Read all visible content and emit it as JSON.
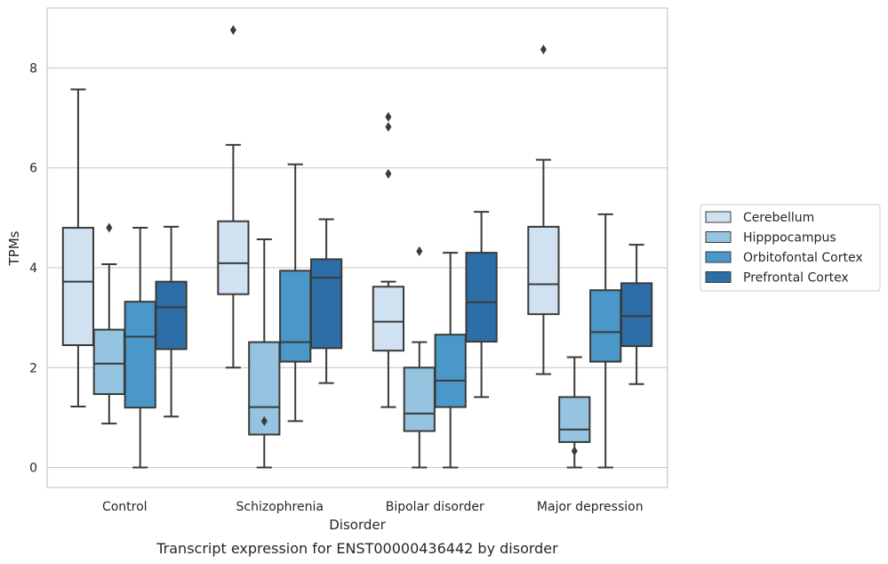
{
  "caption": "Transcript expression for ENST00000436442 by disorder",
  "chart_data": {
    "type": "box",
    "xlabel": "Disorder",
    "ylabel": "TPMs",
    "ylim": [
      -0.4,
      9.2
    ],
    "yticks": [
      0,
      2,
      4,
      6,
      8
    ],
    "grid": "horizontal",
    "legend_position": "right",
    "categories": [
      "Control",
      "Schizophrenia",
      "Bipolar disorder",
      "Major depression"
    ],
    "series": [
      {
        "name": "Cerebellum",
        "color": "#d0e1f2",
        "boxes": [
          {
            "whisker_low": 1.22,
            "q1": 2.45,
            "median": 3.72,
            "q3": 4.8,
            "whisker_high": 7.57,
            "outliers": []
          },
          {
            "whisker_low": 2.0,
            "q1": 3.47,
            "median": 4.09,
            "q3": 4.93,
            "whisker_high": 6.46,
            "outliers": [
              8.76
            ]
          },
          {
            "whisker_low": 1.21,
            "q1": 2.34,
            "median": 2.92,
            "q3": 3.62,
            "whisker_high": 3.72,
            "outliers": [
              5.88,
              6.82,
              7.02
            ]
          },
          {
            "whisker_low": 1.87,
            "q1": 3.07,
            "median": 3.67,
            "q3": 4.82,
            "whisker_high": 6.16,
            "outliers": [
              8.37
            ]
          }
        ]
      },
      {
        "name": "Hipppocampus",
        "color": "#94c4df",
        "boxes": [
          {
            "whisker_low": 0.88,
            "q1": 1.47,
            "median": 2.08,
            "q3": 2.76,
            "whisker_high": 4.07,
            "outliers": [
              4.8
            ]
          },
          {
            "whisker_low": 0.0,
            "q1": 0.66,
            "median": 1.21,
            "q3": 2.51,
            "whisker_high": 4.57,
            "outliers": [
              0.93
            ]
          },
          {
            "whisker_low": 0.0,
            "q1": 0.73,
            "median": 1.08,
            "q3": 2.0,
            "whisker_high": 2.51,
            "outliers": [
              4.33
            ]
          },
          {
            "whisker_low": 0.0,
            "q1": 0.51,
            "median": 0.76,
            "q3": 1.41,
            "whisker_high": 2.21,
            "outliers": [
              0.33
            ]
          }
        ]
      },
      {
        "name": "Orbitofontal Cortex",
        "color": "#4a98c9",
        "boxes": [
          {
            "whisker_low": 0.0,
            "q1": 1.2,
            "median": 2.62,
            "q3": 3.32,
            "whisker_high": 4.8,
            "outliers": []
          },
          {
            "whisker_low": 0.93,
            "q1": 2.12,
            "median": 2.51,
            "q3": 3.94,
            "whisker_high": 6.07,
            "outliers": []
          },
          {
            "whisker_low": 0.0,
            "q1": 1.21,
            "median": 1.74,
            "q3": 2.66,
            "whisker_high": 4.3,
            "outliers": []
          },
          {
            "whisker_low": 0.0,
            "q1": 2.12,
            "median": 2.71,
            "q3": 3.55,
            "whisker_high": 5.07,
            "outliers": []
          }
        ]
      },
      {
        "name": "Prefrontal Cortex",
        "color": "#2e6ea8",
        "boxes": [
          {
            "whisker_low": 1.02,
            "q1": 2.37,
            "median": 3.21,
            "q3": 3.72,
            "whisker_high": 4.82,
            "outliers": []
          },
          {
            "whisker_low": 1.69,
            "q1": 2.39,
            "median": 3.8,
            "q3": 4.17,
            "whisker_high": 4.97,
            "outliers": []
          },
          {
            "whisker_low": 1.41,
            "q1": 2.52,
            "median": 3.31,
            "q3": 4.3,
            "whisker_high": 5.12,
            "outliers": []
          },
          {
            "whisker_low": 1.67,
            "q1": 2.43,
            "median": 3.03,
            "q3": 3.69,
            "whisker_high": 4.46,
            "outliers": []
          }
        ]
      }
    ]
  }
}
